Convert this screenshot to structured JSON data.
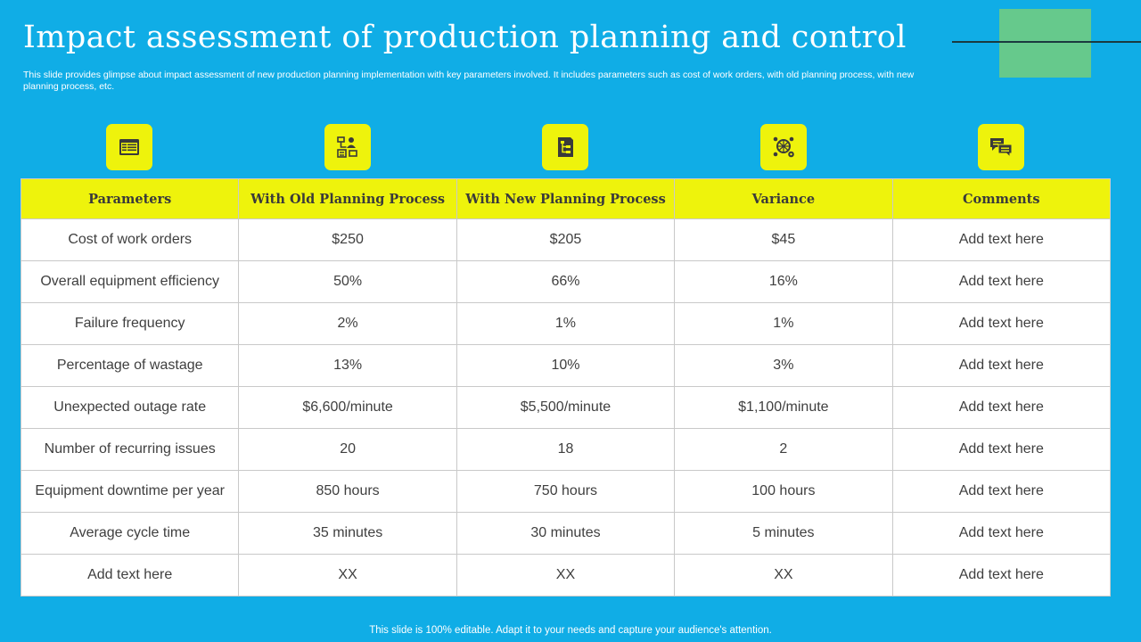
{
  "slide": {
    "title": "Impact assessment of production planning and control",
    "subtitle": "This slide provides glimpse about impact assessment of new production planning implementation with key parameters involved. It includes parameters such as cost of work orders, with old planning process, with new planning process, etc.",
    "footer": "This slide is 100% editable. Adapt it to your needs and capture your audience's attention."
  },
  "colors": {
    "background": "#10ade6",
    "accent": "#eef30c",
    "deco": "#66c98c"
  },
  "icons": [
    "spreadsheet-icon",
    "person-flowchart-icon",
    "document-hierarchy-icon",
    "network-gear-icon",
    "chat-bubbles-icon"
  ],
  "table": {
    "headers": [
      "Parameters",
      "With Old Planning Process",
      "With New Planning Process",
      "Variance",
      "Comments"
    ],
    "rows": [
      [
        "Cost of work orders",
        "$250",
        "$205",
        "$45",
        "Add text here"
      ],
      [
        "Overall equipment efficiency",
        "50%",
        "66%",
        "16%",
        "Add text here"
      ],
      [
        "Failure frequency",
        "2%",
        "1%",
        "1%",
        "Add text here"
      ],
      [
        "Percentage of wastage",
        "13%",
        "10%",
        "3%",
        "Add text here"
      ],
      [
        "Unexpected outage rate",
        "$6,600/minute",
        "$5,500/minute",
        "$1,100/minute",
        "Add text here"
      ],
      [
        "Number of recurring issues",
        "20",
        "18",
        "2",
        "Add text here"
      ],
      [
        "Equipment downtime per year",
        "850 hours",
        "750 hours",
        "100 hours",
        "Add text here"
      ],
      [
        "Average cycle time",
        "35 minutes",
        "30 minutes",
        "5 minutes",
        "Add text here"
      ],
      [
        "Add text here",
        "XX",
        "XX",
        "XX",
        "Add text here"
      ]
    ]
  }
}
